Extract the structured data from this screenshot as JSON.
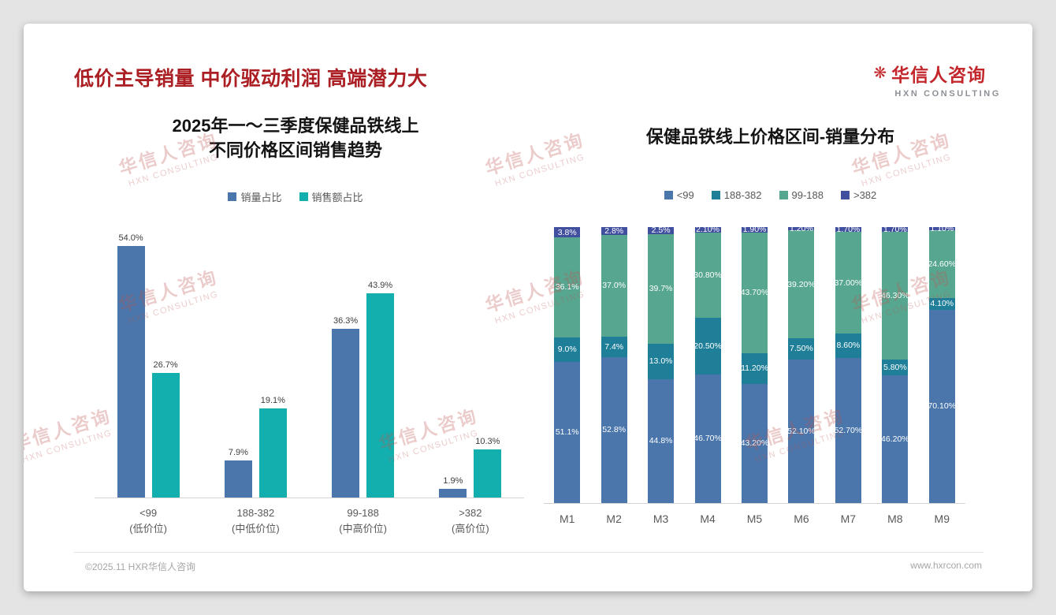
{
  "slide": {
    "title": "低价主导销量 中价驱动利润 高端潜力大",
    "logo": {
      "icon": "❋",
      "name_cn": "华信人咨询",
      "name_en": "HXN CONSULTING"
    },
    "watermark": {
      "line1": "华信人咨询",
      "line2": "HXN CONSULTING"
    },
    "footer": {
      "copyright": "©2025.11 HXR华信人咨询",
      "website": "www.hxrcon.com"
    }
  },
  "chart_data": [
    {
      "type": "bar",
      "title_lines": [
        "2025年一～三季度保健品铁线上",
        "不同价格区间销售趋势"
      ],
      "categories": [
        [
          "<99",
          "(低价位)"
        ],
        [
          "188-382",
          "(中低价位)"
        ],
        [
          "99-188",
          "(中高价位)"
        ],
        [
          ">382",
          "(高价位)"
        ]
      ],
      "series": [
        {
          "name": "销量占比",
          "color": "#4a76ab",
          "values": [
            54.0,
            7.9,
            36.3,
            1.9
          ],
          "labels": [
            "54.0%",
            "7.9%",
            "36.3%",
            "1.9%"
          ]
        },
        {
          "name": "销售额占比",
          "color": "#13aeae",
          "values": [
            26.7,
            19.1,
            43.9,
            10.3
          ],
          "labels": [
            "26.7%",
            "19.1%",
            "43.9%",
            "10.3%"
          ]
        }
      ],
      "ylim": [
        0,
        60
      ],
      "grid": false,
      "legend_position": "top"
    },
    {
      "type": "stacked-bar",
      "title": "保健品铁线上价格区间-销量分布",
      "categories": [
        "M1",
        "M2",
        "M3",
        "M4",
        "M5",
        "M6",
        "M7",
        "M8",
        "M9"
      ],
      "legend": [
        {
          "label": "<99",
          "color": "#4a76ab"
        },
        {
          "label": "188-382",
          "color": "#1f7f99"
        },
        {
          "label": "99-188",
          "color": "#57a690"
        },
        {
          "label": ">382",
          "color": "#404f9e"
        }
      ],
      "series": [
        {
          "name": "<99",
          "color": "#4a76ab",
          "values": [
            51.1,
            52.8,
            44.8,
            46.7,
            43.2,
            52.1,
            52.7,
            46.2,
            70.1
          ],
          "labels": [
            "51.1%",
            "52.8%",
            "44.8%",
            "46.70%",
            "43.20%",
            "52.10%",
            "52.70%",
            "46.20%",
            "70.10%"
          ]
        },
        {
          "name": "188-382",
          "color": "#1f7f99",
          "values": [
            9.0,
            7.4,
            13.0,
            20.5,
            11.2,
            7.5,
            8.6,
            5.8,
            4.1
          ],
          "labels": [
            "9.0%",
            "7.4%",
            "13.0%",
            "20.50%",
            "11.20%",
            "7.50%",
            "8.60%",
            "5.80%",
            "4.10%"
          ]
        },
        {
          "name": "99-188",
          "color": "#57a690",
          "values": [
            36.1,
            37.0,
            39.7,
            30.8,
            43.7,
            39.2,
            37.0,
            46.3,
            24.6
          ],
          "labels": [
            "36.1%",
            "37.0%",
            "39.7%",
            "30.80%",
            "43.70%",
            "39.20%",
            "37.00%",
            "46.30%",
            "24.60%"
          ]
        },
        {
          "name": ">382",
          "color": "#404f9e",
          "values": [
            3.8,
            2.8,
            2.5,
            2.1,
            1.9,
            1.2,
            1.7,
            1.7,
            1.1
          ],
          "labels": [
            "3.8%",
            "2.8%",
            "2.5%",
            "2.10%",
            "1.90%",
            "1.20%",
            "1.70%",
            "1.70%",
            "1.10%"
          ]
        }
      ],
      "ylim": [
        0,
        100
      ],
      "stack_order": "bottom-to-top",
      "legend_position": "top"
    }
  ]
}
